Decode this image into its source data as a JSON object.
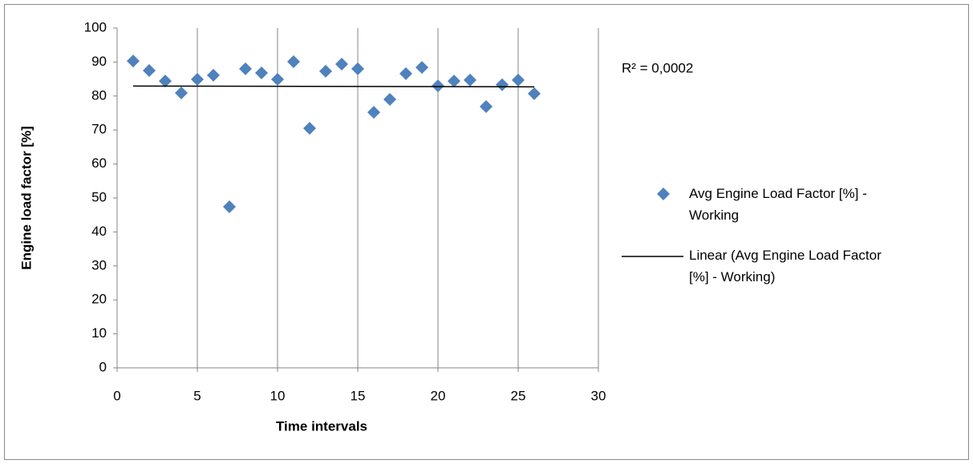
{
  "chart_data": {
    "type": "scatter",
    "x_label": "Time intervals",
    "y_label": "Engine load factor [%]",
    "x": [
      1,
      2,
      3,
      4,
      5,
      6,
      7,
      8,
      9,
      10,
      11,
      12,
      13,
      14,
      15,
      16,
      17,
      18,
      19,
      20,
      21,
      22,
      23,
      24,
      25,
      26
    ],
    "series": [
      {
        "name": "Avg Engine Load Factor [%] - Working",
        "color": "#4f81bd",
        "marker": "diamond",
        "values": [
          90.3,
          87.5,
          84.4,
          80.9,
          84.9,
          86.1,
          47.4,
          88.0,
          86.8,
          84.9,
          90.1,
          70.5,
          87.3,
          89.4,
          88.0,
          75.2,
          79.0,
          86.6,
          88.4,
          83.0,
          84.4,
          84.7,
          76.9,
          83.3,
          84.7,
          80.7
        ]
      }
    ],
    "trendline": {
      "type": "linear",
      "name": "Linear (Avg Engine Load Factor [%] - Working)",
      "color": "#000000",
      "annotation": "R² = 0,0002"
    },
    "xlim": [
      0,
      30
    ],
    "ylim": [
      0,
      100
    ],
    "xticks": [
      0,
      5,
      10,
      15,
      20,
      25,
      30
    ],
    "yticks": [
      0,
      10,
      20,
      30,
      40,
      50,
      60,
      70,
      80,
      90,
      100
    ],
    "grid": "x",
    "legend": "right"
  }
}
